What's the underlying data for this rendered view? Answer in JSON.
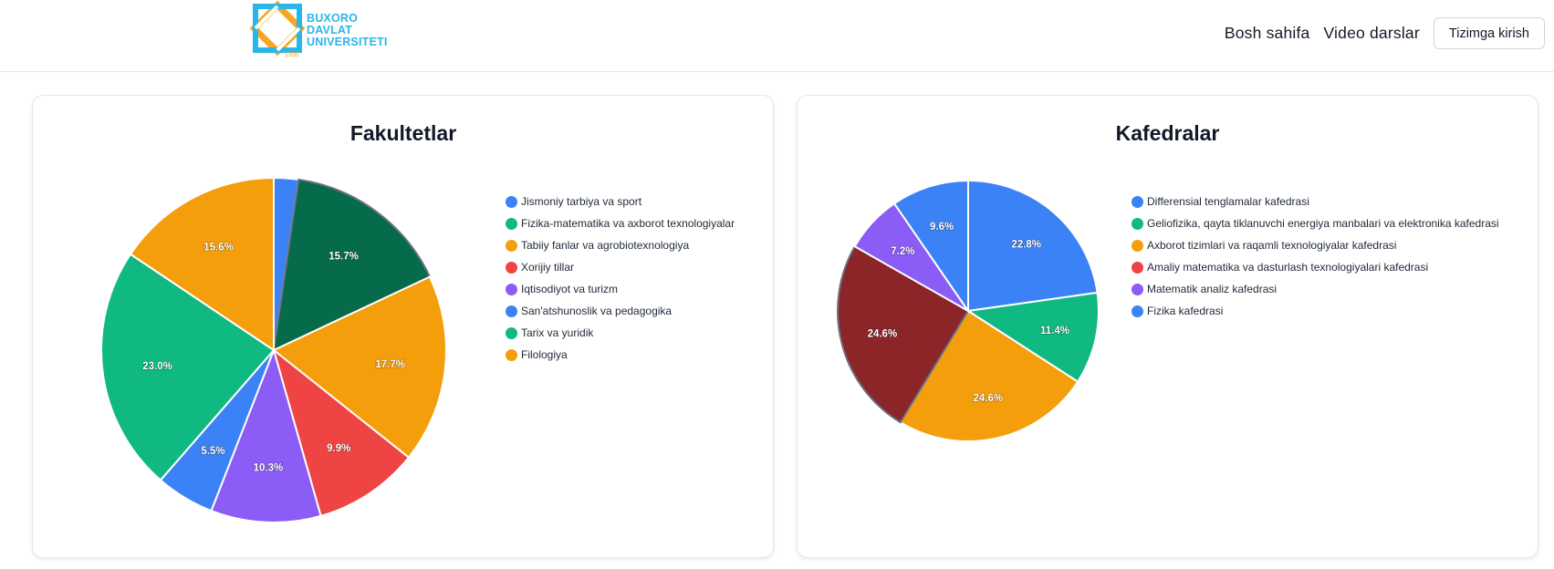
{
  "header": {
    "logo": {
      "line1": "BUXORO",
      "line2": "DAVLAT",
      "line3": "UNIVERSITETI",
      "year": "1930"
    },
    "nav": {
      "home": "Bosh sahifa",
      "videos": "Video darslar",
      "login": "Tizimga kirish"
    },
    "colors": {
      "logo_blue": "#29b6e8",
      "logo_orange": "#f5a623"
    }
  },
  "chart_data": [
    {
      "type": "pie",
      "title": "Fakultetlar",
      "legend_position": "right",
      "categories": [
        "Jismoniy tarbiya va sport",
        "Fizika-matematika va axborot texnologiyalar",
        "Tabiiy fanlar va agrobiotexnologiya",
        "Xorijiy tillar",
        "Iqtisodiyot va turizm",
        "San'atshunoslik va pedagogika",
        "Tarix va yuridik",
        "Filologiya"
      ],
      "values": [
        2.3,
        15.7,
        17.7,
        9.9,
        10.3,
        5.5,
        23.0,
        15.6
      ],
      "labels": [
        "",
        "15.7%",
        "17.7%",
        "9.9%",
        "10.3%",
        "5.5%",
        "23.0%",
        "15.6%"
      ],
      "colors": [
        "#3b82f6",
        "#10b981",
        "#f59e0b",
        "#ef4444",
        "#8b5cf6",
        "#3b82f6",
        "#10b981",
        "#f59e0b"
      ],
      "highlighted_index": 1,
      "highlight_color": "#066b4a"
    },
    {
      "type": "pie",
      "title": "Kafedralar",
      "legend_position": "right",
      "categories": [
        "Differensial tenglamalar kafedrasi",
        "Geliofizika, qayta tiklanuvchi energiya manbalari va elektronika kafedrasi",
        "Axborot tizimlari va raqamli texnologiyalar kafedrasi",
        "Amaliy matematika va dasturlash texnologiyalari kafedrasi",
        "Matematik analiz kafedrasi",
        "Fizika kafedrasi"
      ],
      "values": [
        22.8,
        11.4,
        24.6,
        24.6,
        7.2,
        9.6
      ],
      "labels": [
        "22.8%",
        "11.4%",
        "24.6%",
        "24.6%",
        "7.2%",
        "9.6%"
      ],
      "colors": [
        "#3b82f6",
        "#10b981",
        "#f59e0b",
        "#ef4444",
        "#8b5cf6",
        "#3b82f6"
      ],
      "highlighted_index": 3,
      "highlight_color": "#8b2528"
    }
  ]
}
